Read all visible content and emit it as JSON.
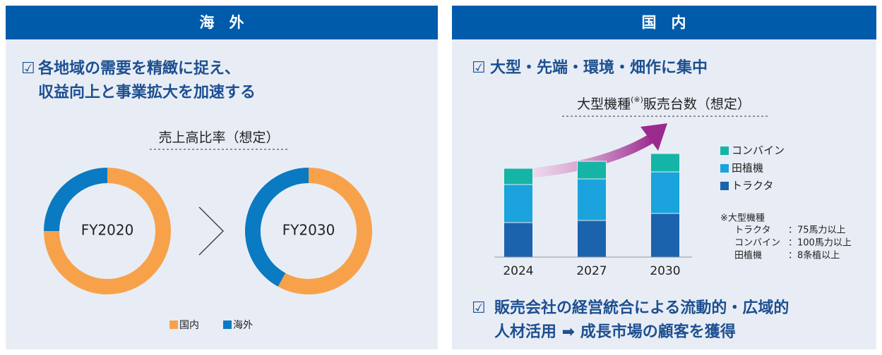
{
  "left": {
    "header": "海　外",
    "point": [
      "各地域の需要を精緻に捉え、",
      "収益向上と事業拡大を加速する"
    ]
  },
  "right": {
    "header": "国　内",
    "point1": "大型・先端・環境・畑作に集中",
    "point2": [
      "販売会社の経営統合による流動的・広域的",
      "人材活用 ➡ 成長市場の顧客を獲得"
    ],
    "note": {
      "title": "※大型機種",
      "rows": [
        [
          "トラクタ",
          "：75馬力以上"
        ],
        [
          "コンバイン",
          "：100馬力以上"
        ],
        [
          "田植機",
          "：8条植以上"
        ]
      ]
    }
  },
  "chart_data": [
    {
      "type": "donut",
      "title": "売上高比率（想定）",
      "categories": [
        "FY2020",
        "FY2030"
      ],
      "series": [
        {
          "name": "国内",
          "color": "#f7a24b",
          "values": [
            75,
            58
          ]
        },
        {
          "name": "海外",
          "color": "#0a7ac2",
          "values": [
            25,
            42
          ]
        }
      ]
    },
    {
      "type": "bar",
      "stacked": true,
      "title": [
        "大型機種",
        "(※)",
        "販売台数（想定）"
      ],
      "categories": [
        "2024",
        "2027",
        "2030"
      ],
      "ylim": [
        0,
        150
      ],
      "series": [
        {
          "name": "トラクタ",
          "color": "#1c63ad",
          "values": [
            49,
            52,
            62
          ]
        },
        {
          "name": "田植機",
          "color": "#1aa3dc",
          "values": [
            54,
            59,
            59
          ]
        },
        {
          "name": "コンバイン",
          "color": "#14b5a6",
          "values": [
            23,
            25,
            26
          ]
        }
      ]
    }
  ]
}
